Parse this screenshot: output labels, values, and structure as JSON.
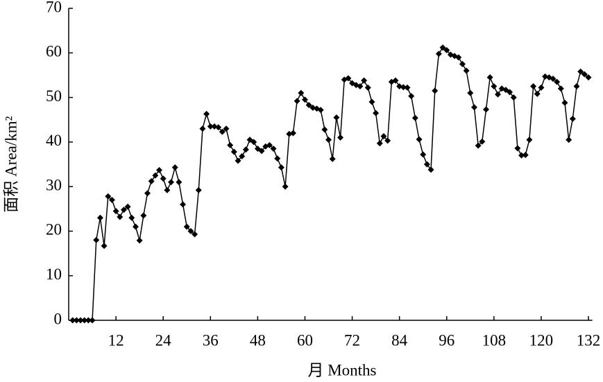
{
  "chart_data": {
    "type": "line",
    "x_label": "月 Months",
    "y_label": "面积 Area/km²",
    "x": [
      1,
      2,
      3,
      4,
      5,
      6,
      7,
      8,
      9,
      10,
      11,
      12,
      13,
      14,
      15,
      16,
      17,
      18,
      19,
      20,
      21,
      22,
      23,
      24,
      25,
      26,
      27,
      28,
      29,
      30,
      31,
      32,
      33,
      34,
      35,
      36,
      37,
      38,
      39,
      40,
      41,
      42,
      43,
      44,
      45,
      46,
      47,
      48,
      49,
      50,
      51,
      52,
      53,
      54,
      55,
      56,
      57,
      58,
      59,
      60,
      61,
      62,
      63,
      64,
      65,
      66,
      67,
      68,
      69,
      70,
      71,
      72,
      73,
      74,
      75,
      76,
      77,
      78,
      79,
      80,
      81,
      82,
      83,
      84,
      85,
      86,
      87,
      88,
      89,
      90,
      91,
      92,
      93,
      94,
      95,
      96,
      97,
      98,
      99,
      100,
      101,
      102,
      103,
      104,
      105,
      106,
      107,
      108,
      109,
      110,
      111,
      112,
      113,
      114,
      115,
      116,
      117,
      118,
      119,
      120,
      121,
      122,
      123,
      124,
      125,
      126,
      127,
      128,
      129,
      130,
      131,
      132
    ],
    "series": [
      {
        "color": "#000000",
        "marker": "diamond",
        "values": [
          0,
          0,
          0,
          0,
          0,
          0,
          18,
          23,
          16.7,
          27.8,
          27,
          24.5,
          23.2,
          24.8,
          25.5,
          23,
          21,
          17.9,
          23.5,
          28.5,
          31.2,
          32.5,
          33.7,
          31.8,
          29.2,
          31,
          34.3,
          31,
          26,
          21,
          20,
          19.3,
          29.2,
          43,
          46.3,
          43.5,
          43.5,
          43.3,
          42.3,
          43,
          39.3,
          37.8,
          35.8,
          36.8,
          38.3,
          40.5,
          40,
          38.5,
          38,
          39,
          39.3,
          38.5,
          36.3,
          34.3,
          30,
          41.8,
          42,
          49.2,
          51,
          49.5,
          48.3,
          47.7,
          47.5,
          47.2,
          42.8,
          40.5,
          36.2,
          45.5,
          41,
          54,
          54.3,
          53.2,
          52.8,
          52.5,
          53.8,
          52.2,
          49,
          46.5,
          39.7,
          41.3,
          40.3,
          53.5,
          53.8,
          52.5,
          52.3,
          52.2,
          50.3,
          45.4,
          40.6,
          37.2,
          35,
          33.8,
          51.5,
          59.8,
          61.2,
          60.6,
          59.6,
          59.3,
          59,
          57.5,
          56,
          51,
          47.8,
          39.2,
          40.1,
          47.3,
          54.5,
          52.5,
          50.7,
          52,
          51.7,
          51.2,
          50,
          38.6,
          37,
          37.1,
          40.5,
          52.5,
          50.8,
          52.2,
          54.7,
          54.5,
          54.2,
          53.5,
          52,
          48.8,
          40.5,
          45.2,
          52.5,
          55.8,
          55.2,
          54.5
        ]
      }
    ],
    "xlim": [
      0,
      133
    ],
    "xticks": [
      12,
      24,
      36,
      48,
      60,
      72,
      84,
      96,
      108,
      120,
      132
    ],
    "ylim": [
      0,
      70
    ],
    "yticks": [
      0,
      10,
      20,
      30,
      40,
      50,
      60,
      70
    ]
  }
}
